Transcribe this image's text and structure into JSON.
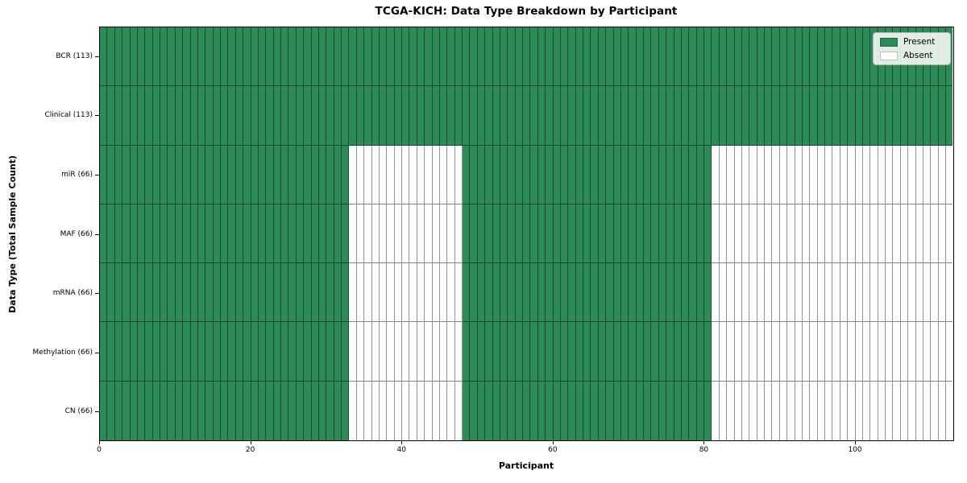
{
  "chart_data": {
    "type": "heatmap",
    "title": "TCGA-KICH: Data Type Breakdown by Participant",
    "xlabel": "Participant",
    "ylabel": "Data Type (Total Sample Count)",
    "xlim": [
      0,
      113
    ],
    "n_participants": 113,
    "x_ticks": [
      0,
      20,
      40,
      60,
      80,
      100
    ],
    "grid": "per-cell borders",
    "legend_position": "upper right",
    "rows": [
      {
        "label": "BCR (113)",
        "present_count": 113,
        "present_ranges": [
          [
            0,
            113
          ]
        ]
      },
      {
        "label": "Clinical (113)",
        "present_count": 113,
        "present_ranges": [
          [
            0,
            113
          ]
        ]
      },
      {
        "label": "miR (66)",
        "present_count": 66,
        "present_ranges": [
          [
            0,
            33
          ],
          [
            48,
            81
          ]
        ]
      },
      {
        "label": "MAF (66)",
        "present_count": 66,
        "present_ranges": [
          [
            0,
            33
          ],
          [
            48,
            81
          ]
        ]
      },
      {
        "label": "mRNA (66)",
        "present_count": 66,
        "present_ranges": [
          [
            0,
            33
          ],
          [
            48,
            81
          ]
        ]
      },
      {
        "label": "Methylation (66)",
        "present_count": 66,
        "present_ranges": [
          [
            0,
            33
          ],
          [
            48,
            81
          ]
        ]
      },
      {
        "label": "CN (66)",
        "present_count": 66,
        "present_ranges": [
          [
            0,
            33
          ],
          [
            48,
            81
          ]
        ]
      }
    ],
    "legend": [
      {
        "label": "Present",
        "color": "#2e8b57"
      },
      {
        "label": "Absent",
        "color": "#ffffff"
      }
    ],
    "colors": {
      "present": "#2e8b57",
      "absent": "#ffffff",
      "cell_border": "rgba(0,0,0,0.45)",
      "axis": "#000000"
    }
  }
}
